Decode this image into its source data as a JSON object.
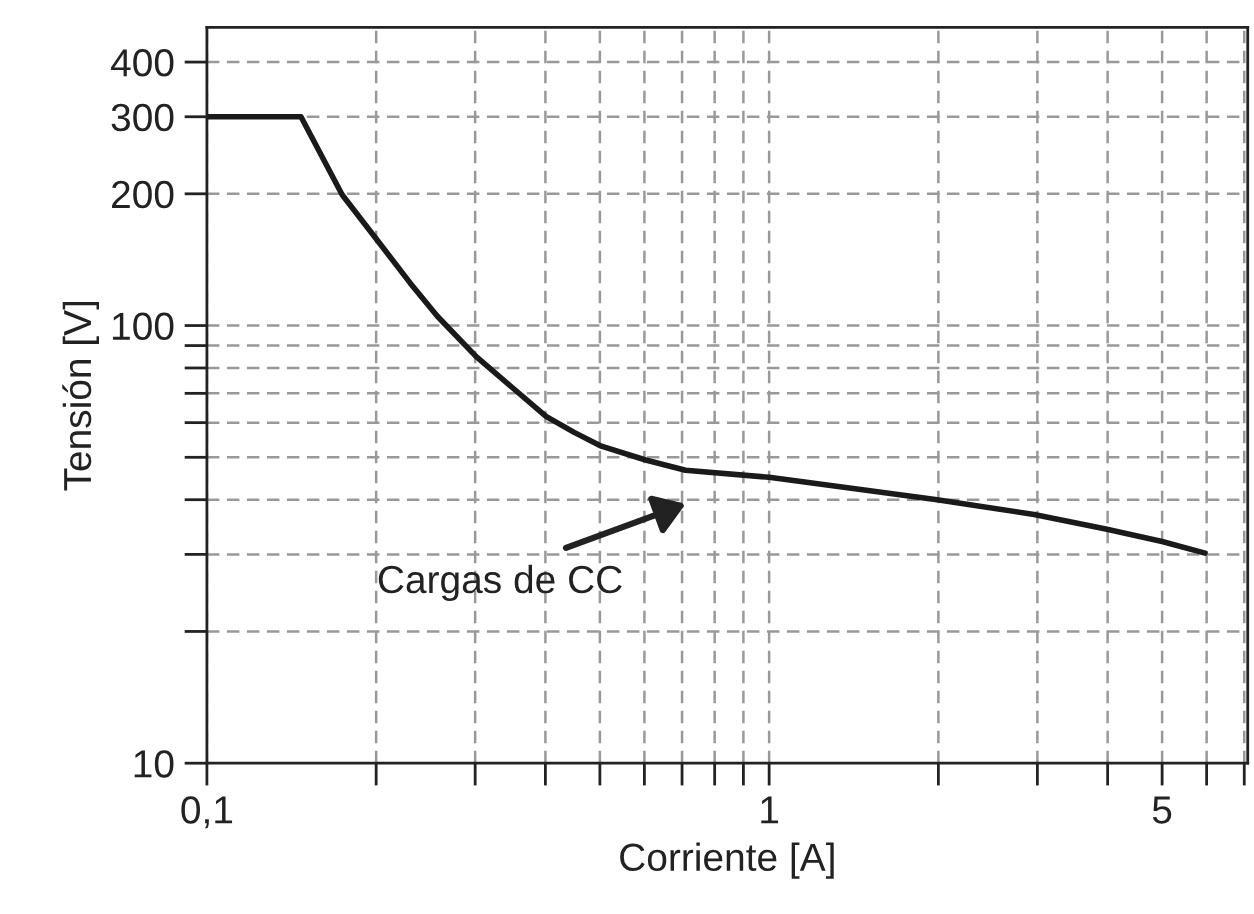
{
  "chart_data": {
    "type": "line",
    "xlabel": "Corriente [A]",
    "ylabel": "Tensión [V]",
    "log": "xy",
    "grid": true,
    "marker": "none",
    "line_style": "solid",
    "annotations": [
      "Cargas de CC"
    ],
    "series": [
      {
        "color": "#1a1a1a",
        "x": [
          0.1,
          0.147,
          0.174,
          0.203,
          0.23,
          0.257,
          0.301,
          0.35,
          0.401,
          0.45,
          0.503,
          0.603,
          0.71,
          1.0,
          1.99,
          2.96,
          3.97,
          5.0,
          5.96
        ],
        "values": [
          300,
          300,
          199,
          154,
          125,
          105,
          85,
          72,
          62,
          57,
          53,
          49.3,
          46.7,
          45,
          40,
          37,
          34.3,
          32.1,
          30.2
        ]
      }
    ],
    "xlim": [
      0.1,
      7.1
    ],
    "ylim": [
      10,
      480
    ],
    "xticks": [
      {
        "value": 0.1,
        "label": "0,1"
      },
      {
        "value": 0.2,
        "label": null
      },
      {
        "value": 0.3,
        "label": null
      },
      {
        "value": 0.4,
        "label": null
      },
      {
        "value": 0.5,
        "label": null
      },
      {
        "value": 0.6,
        "label": null
      },
      {
        "value": 0.7,
        "label": null
      },
      {
        "value": 0.8,
        "label": null
      },
      {
        "value": 0.9,
        "label": null
      },
      1,
      {
        "value": 2,
        "label": null
      },
      {
        "value": 3,
        "label": null
      },
      {
        "value": 4,
        "label": null
      },
      5,
      {
        "value": 6,
        "label": null
      },
      {
        "value": 7,
        "label": null
      }
    ],
    "yticks": [
      10,
      {
        "value": 20,
        "label": null
      },
      {
        "value": 30,
        "label": null
      },
      {
        "value": 40,
        "label": null
      },
      {
        "value": 50,
        "label": null
      },
      {
        "value": 60,
        "label": null
      },
      {
        "value": 70,
        "label": null
      },
      {
        "value": 80,
        "label": null
      },
      {
        "value": 90,
        "label": null
      },
      100,
      200,
      300,
      400
    ]
  }
}
